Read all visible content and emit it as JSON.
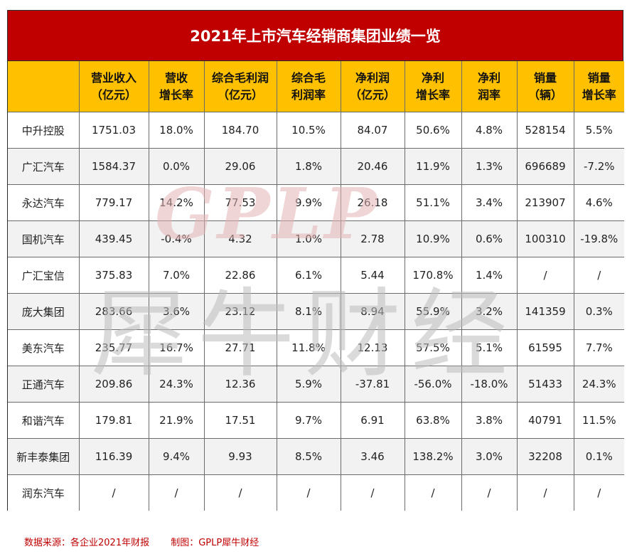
{
  "title": "2021年上市汽车经销商集团业绩一览",
  "headers": [
    [
      "",
      ""
    ],
    [
      "营业收入",
      "（亿元）"
    ],
    [
      "营收",
      "增长率"
    ],
    [
      "综合毛利润",
      "（亿元）"
    ],
    [
      "综合毛",
      "利润率"
    ],
    [
      "净利润",
      "（亿元）"
    ],
    [
      "净利",
      "增长率"
    ],
    [
      "净利",
      "润率"
    ],
    [
      "销量",
      "（辆）"
    ],
    [
      "销量",
      "增长率"
    ]
  ],
  "rows": [
    [
      "中升控股",
      "1751.03",
      "18.0%",
      "184.70",
      "10.5%",
      "84.07",
      "50.6%",
      "4.8%",
      "528154",
      "5.5%"
    ],
    [
      "广汇汽车",
      "1584.37",
      "0.0%",
      "29.06",
      "1.8%",
      "20.46",
      "11.9%",
      "1.3%",
      "696689",
      "-7.2%"
    ],
    [
      "永达汽车",
      "779.17",
      "14.2%",
      "77.53",
      "9.9%",
      "26.18",
      "51.1%",
      "3.4%",
      "213907",
      "4.6%"
    ],
    [
      "国机汽车",
      "439.45",
      "-0.4%",
      "4.32",
      "1.0%",
      "2.78",
      "10.9%",
      "0.6%",
      "100310",
      "-19.8%"
    ],
    [
      "广汇宝信",
      "375.83",
      "7.0%",
      "22.86",
      "6.1%",
      "5.44",
      "170.8%",
      "1.4%",
      "/",
      "/"
    ],
    [
      "庞大集团",
      "283.66",
      "3.6%",
      "23.12",
      "8.1%",
      "8.94",
      "55.9%",
      "3.2%",
      "141359",
      "0.3%"
    ],
    [
      "美东汽车",
      "235.77",
      "16.7%",
      "27.71",
      "11.8%",
      "12.13",
      "57.5%",
      "5.1%",
      "61595",
      "7.7%"
    ],
    [
      "正通汽车",
      "209.86",
      "24.3%",
      "12.36",
      "5.9%",
      "-37.81",
      "-56.0%",
      "-18.0%",
      "51433",
      "24.3%"
    ],
    [
      "和谐汽车",
      "179.81",
      "21.9%",
      "17.51",
      "9.7%",
      "6.91",
      "63.8%",
      "3.8%",
      "40791",
      "11.5%"
    ],
    [
      "新丰泰集团",
      "116.39",
      "9.4%",
      "9.93",
      "8.5%",
      "3.46",
      "138.2%",
      "3.0%",
      "32208",
      "0.1%"
    ],
    [
      "润东汽车",
      "/",
      "/",
      "/",
      "/",
      "/",
      "/",
      "/",
      "/",
      "/"
    ]
  ],
  "watermark": {
    "latin": "GPLP",
    "chinese": "犀牛财经"
  },
  "footer": {
    "source": "数据来源：各企业2021年财报",
    "credit": "制图：GPLP犀牛财经"
  },
  "colors": {
    "title_bg": "#c00000",
    "header_bg": "#ffc000",
    "footer_text": "#c00000"
  }
}
